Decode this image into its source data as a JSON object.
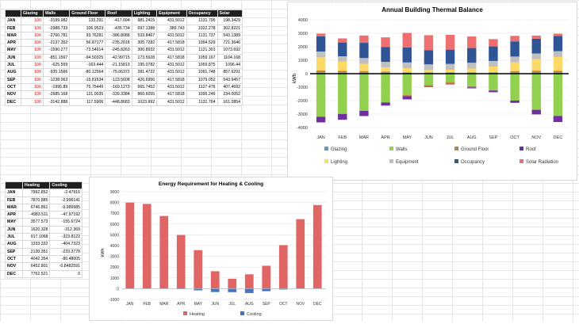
{
  "table1": {
    "headers": [
      "",
      "Glazing",
      "Walls",
      "Ground Floor",
      "Roof",
      "Lighting",
      "Equipment",
      "Occupancy",
      "Solar"
    ],
    "rows": [
      [
        "JAN",
        "100",
        "-3199.982",
        "133.291",
        "-417.094",
        "981.2415",
        "431.5012",
        "1131.795",
        "198.3429"
      ],
      [
        "FEB",
        "100",
        "-2988.733",
        "106.9523",
        "-435.734",
        "697.1388",
        "389.743",
        "1022.278",
        "302.8221"
      ],
      [
        "MAR",
        "100",
        "-2760.781",
        "93.76281",
        "-386.8088",
        "533.8467",
        "431.5012",
        "1131.737",
        "543.1389"
      ],
      [
        "APR",
        "100",
        "-2137.352",
        "56.87177",
        "-235.2018",
        "305.7282",
        "417.5818",
        "1094.529",
        "721.3646"
      ],
      [
        "MAY",
        "100",
        "-1590.277",
        "-73.54914",
        "-245.8263",
        "300.8932",
        "431.5012",
        "1121.301",
        "1073.692"
      ],
      [
        "JUN",
        "100",
        "-851.1567",
        "-94.50325",
        "-42.99715",
        "173.5928",
        "417.5818",
        "1059.167",
        "1104.168"
      ],
      [
        "JUL",
        "100",
        "-625.559",
        "-163.444",
        "-21.15813",
        "195.0782",
        "431.5012",
        "1059.875",
        "1096.44"
      ],
      [
        "AUG",
        "100",
        "-935.1566",
        "-80.12564",
        "-75.06372",
        "281.4722",
        "431.5012",
        "1091.748",
        "857.6291"
      ],
      [
        "SEP",
        "100",
        "-1238.063",
        "-15.81534",
        "-123.5608",
        "426.6956",
        "417.5818",
        "1079.052",
        "543.9457"
      ],
      [
        "OCT",
        "100",
        "-1995.89",
        "75.75449",
        "-169.1273",
        "665.7452",
        "431.5012",
        "1127.476",
        "407.4692"
      ],
      [
        "NOV",
        "100",
        "-2685.168",
        "121.0035",
        "-339.3384",
        "860.6055",
        "417.5818",
        "1095.246",
        "234.0052"
      ],
      [
        "DEC",
        "100",
        "-3142.888",
        "117.5906",
        "-448.8683",
        "1023.992",
        "431.5012",
        "1131.764",
        "161.0854"
      ]
    ]
  },
  "table2": {
    "headers": [
      "",
      "Heating",
      "Cooling"
    ],
    "rows": [
      [
        "JAN",
        "7992.852",
        "-2.47916"
      ],
      [
        "FEB",
        "7870.885",
        "-2.996141"
      ],
      [
        "MAR",
        "6746.861",
        "-9.989985"
      ],
      [
        "APR",
        "4983.511",
        "-47.97192"
      ],
      [
        "MAY",
        "3577.573",
        "-155.6724"
      ],
      [
        "JUN",
        "1620.328",
        "-312.369"
      ],
      [
        "JUL",
        "917.1068",
        "-323.8122"
      ],
      [
        "AUG",
        "1333.332",
        "-404.7323"
      ],
      [
        "SEP",
        "2130.351",
        "-233.3778"
      ],
      [
        "OCT",
        "4042.354",
        "-80.48005"
      ],
      [
        "NOV",
        "6452.801",
        "-0.8482591"
      ],
      [
        "DEC",
        "7762.521",
        "0"
      ]
    ]
  },
  "chart_data": [
    {
      "type": "bar",
      "stacked": true,
      "title": "Annual Building Thermal Balance",
      "ylabel": "kWh",
      "ylim": [
        -4000,
        4000
      ],
      "yticks": [
        "4000",
        "3000",
        "2000",
        "1000",
        "0",
        "-1000",
        "-2000",
        "-3000",
        "-4000"
      ],
      "categories": [
        "JAN",
        "FEB",
        "MAR",
        "APR",
        "MAY",
        "JUN",
        "JUL",
        "AUG",
        "SEP",
        "OCT",
        "NOV",
        "DEC"
      ],
      "legend_position": "bottom",
      "series": [
        {
          "name": "Glazing",
          "color": "#5b9bd5",
          "values": [
            100,
            100,
            100,
            100,
            100,
            100,
            100,
            100,
            100,
            100,
            100,
            100
          ]
        },
        {
          "name": "Walls",
          "color": "#92d050",
          "values": [
            -3199.982,
            -2988.733,
            -2760.781,
            -2137.352,
            -1590.277,
            -851.1567,
            -625.559,
            -935.1566,
            -1238.063,
            -1995.89,
            -2685.168,
            -3142.888
          ]
        },
        {
          "name": "Ground Floor",
          "color": "#c0823f",
          "values": [
            133.291,
            106.9523,
            93.76281,
            56.87177,
            -73.54914,
            -94.50325,
            -163.444,
            -80.12564,
            -15.81534,
            75.75449,
            121.0035,
            117.5906
          ]
        },
        {
          "name": "Roof",
          "color": "#7030a0",
          "values": [
            -417.094,
            -435.734,
            -386.8088,
            -235.2018,
            -245.8263,
            -42.99715,
            -21.15813,
            -75.06372,
            -123.5608,
            -169.1273,
            -339.3384,
            -448.8683
          ]
        },
        {
          "name": "Lighting",
          "color": "#ffd966",
          "values": [
            981.2415,
            697.1388,
            533.8467,
            305.7282,
            300.8932,
            173.5928,
            195.0782,
            281.4722,
            426.6956,
            665.7452,
            860.6055,
            1023.992
          ]
        },
        {
          "name": "Equipment",
          "color": "#bfbfbf",
          "values": [
            431.5012,
            389.743,
            431.5012,
            417.5818,
            431.5012,
            417.5818,
            431.5012,
            431.5012,
            417.5818,
            431.5012,
            417.5818,
            431.5012
          ]
        },
        {
          "name": "Occupancy",
          "color": "#2f5597",
          "values": [
            1131.795,
            1022.278,
            1131.737,
            1094.529,
            1121.301,
            1059.167,
            1059.875,
            1091.748,
            1079.052,
            1127.476,
            1095.246,
            1131.764
          ]
        },
        {
          "name": "Solar Radiation",
          "color": "#ed6f6f",
          "values": [
            198.3429,
            302.8221,
            543.1389,
            721.3646,
            1073.692,
            1104.168,
            1096.44,
            857.6291,
            543.9457,
            407.4692,
            234.0052,
            161.0854
          ]
        }
      ]
    },
    {
      "type": "bar",
      "title": "Energy Requirement for Heating & Cooling",
      "ylabel": "kWh",
      "ylim": [
        -1000,
        9000
      ],
      "yticks": [
        "9000",
        "8000",
        "7000",
        "6000",
        "5000",
        "4000",
        "3000",
        "2000",
        "1000",
        "0",
        "-1000"
      ],
      "categories": [
        "JAN",
        "FEB",
        "MAR",
        "APR",
        "MAY",
        "JUN",
        "JUL",
        "AUG",
        "SEP",
        "OCT",
        "NOV",
        "DEC"
      ],
      "legend_position": "bottom",
      "series": [
        {
          "name": "Heating",
          "color": "#e06666",
          "values": [
            7992.852,
            7870.885,
            6746.861,
            4983.511,
            3577.573,
            1620.328,
            917.1068,
            1333.332,
            2130.351,
            4042.354,
            6452.801,
            7762.521
          ]
        },
        {
          "name": "Cooling",
          "color": "#4472c4",
          "values": [
            -2.47916,
            -2.996141,
            -9.989985,
            -47.97192,
            -155.6724,
            -312.369,
            -323.8122,
            -404.7323,
            -233.3778,
            -80.48005,
            -0.8482591,
            0
          ]
        }
      ]
    }
  ]
}
